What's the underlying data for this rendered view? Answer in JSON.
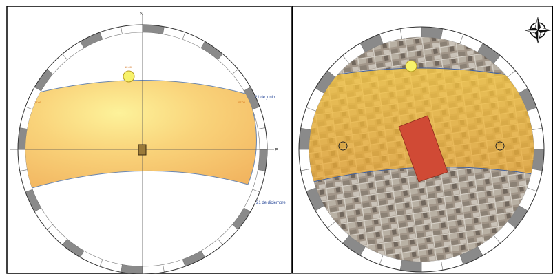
{
  "left_diagram": {
    "north_label": "N",
    "east_label": "E",
    "noon_label": "12:00",
    "morning_label": "17:00",
    "evening_label": "07:00",
    "summer_label": "21 de junio",
    "winter_label": "21 de diciembre",
    "band_color": "#f5c060",
    "sun_color": "#f7f26a",
    "ring_dark": "#8a8a8a"
  },
  "right_diagram": {
    "band_color": "#f0b030",
    "building_color": "#d04a35",
    "sun_color": "#f7f26a",
    "compass": "compass-rose-icon"
  }
}
